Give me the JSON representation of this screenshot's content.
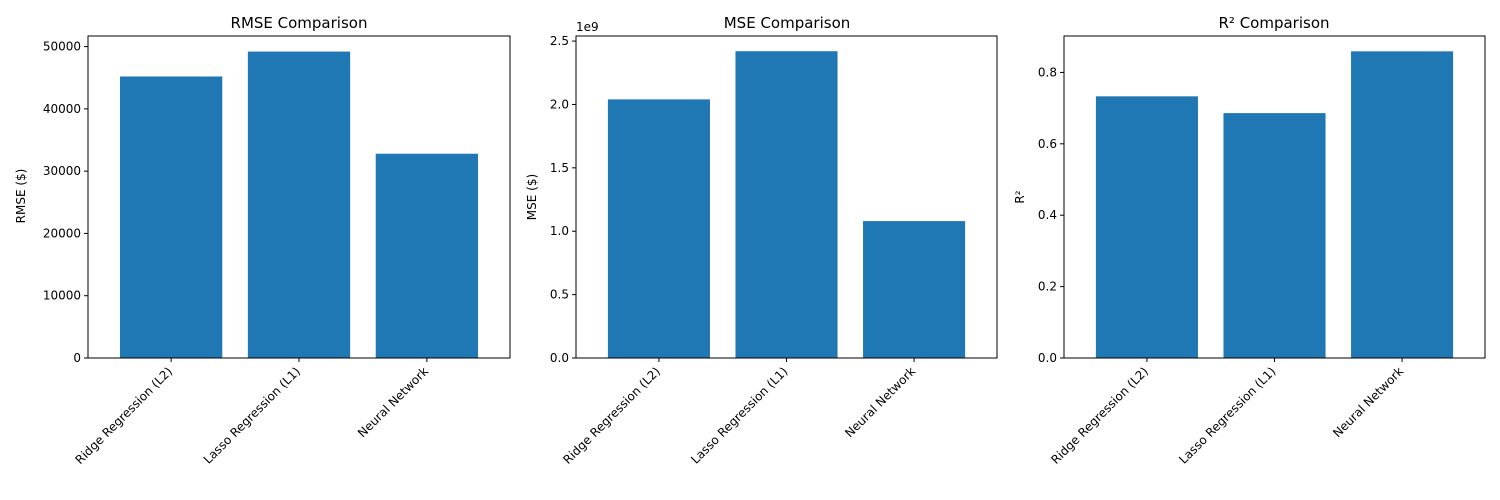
{
  "chart_data": [
    {
      "type": "bar",
      "title": "RMSE Comparison",
      "xlabel": "",
      "ylabel": "RMSE ($)",
      "categories": [
        "Ridge Regression (L2)",
        "Lasso Regression (L1)",
        "Neural Network"
      ],
      "values": [
        45200,
        49200,
        32800
      ],
      "ylim": [
        0,
        51700
      ],
      "yticks": [
        0,
        10000,
        20000,
        30000,
        40000,
        50000
      ],
      "ytick_labels": [
        "0",
        "10000",
        "20000",
        "30000",
        "40000",
        "50000"
      ],
      "offset_text": "",
      "bar_color": "#1f77b4",
      "grid": false
    },
    {
      "type": "bar",
      "title": "MSE Comparison",
      "xlabel": "",
      "ylabel": "MSE ($)",
      "categories": [
        "Ridge Regression (L2)",
        "Lasso Regression (L1)",
        "Neural Network"
      ],
      "values": [
        2.04,
        2.42,
        1.08
      ],
      "ylim": [
        0,
        2.54
      ],
      "yticks": [
        0,
        0.5,
        1.0,
        1.5,
        2.0,
        2.5
      ],
      "ytick_labels": [
        "0.0",
        "0.5",
        "1.0",
        "1.5",
        "2.0",
        "2.5"
      ],
      "offset_text": "1e9",
      "bar_color": "#1f77b4",
      "grid": false
    },
    {
      "type": "bar",
      "title": "R² Comparison",
      "xlabel": "",
      "ylabel": "R²",
      "categories": [
        "Ridge Regression (L2)",
        "Lasso Regression (L1)",
        "Neural Network"
      ],
      "values": [
        0.733,
        0.686,
        0.859
      ],
      "ylim": [
        0,
        0.902
      ],
      "yticks": [
        0,
        0.2,
        0.4,
        0.6,
        0.8
      ],
      "ytick_labels": [
        "0.0",
        "0.2",
        "0.4",
        "0.6",
        "0.8"
      ],
      "offset_text": "",
      "bar_color": "#1f77b4",
      "grid": false
    }
  ]
}
